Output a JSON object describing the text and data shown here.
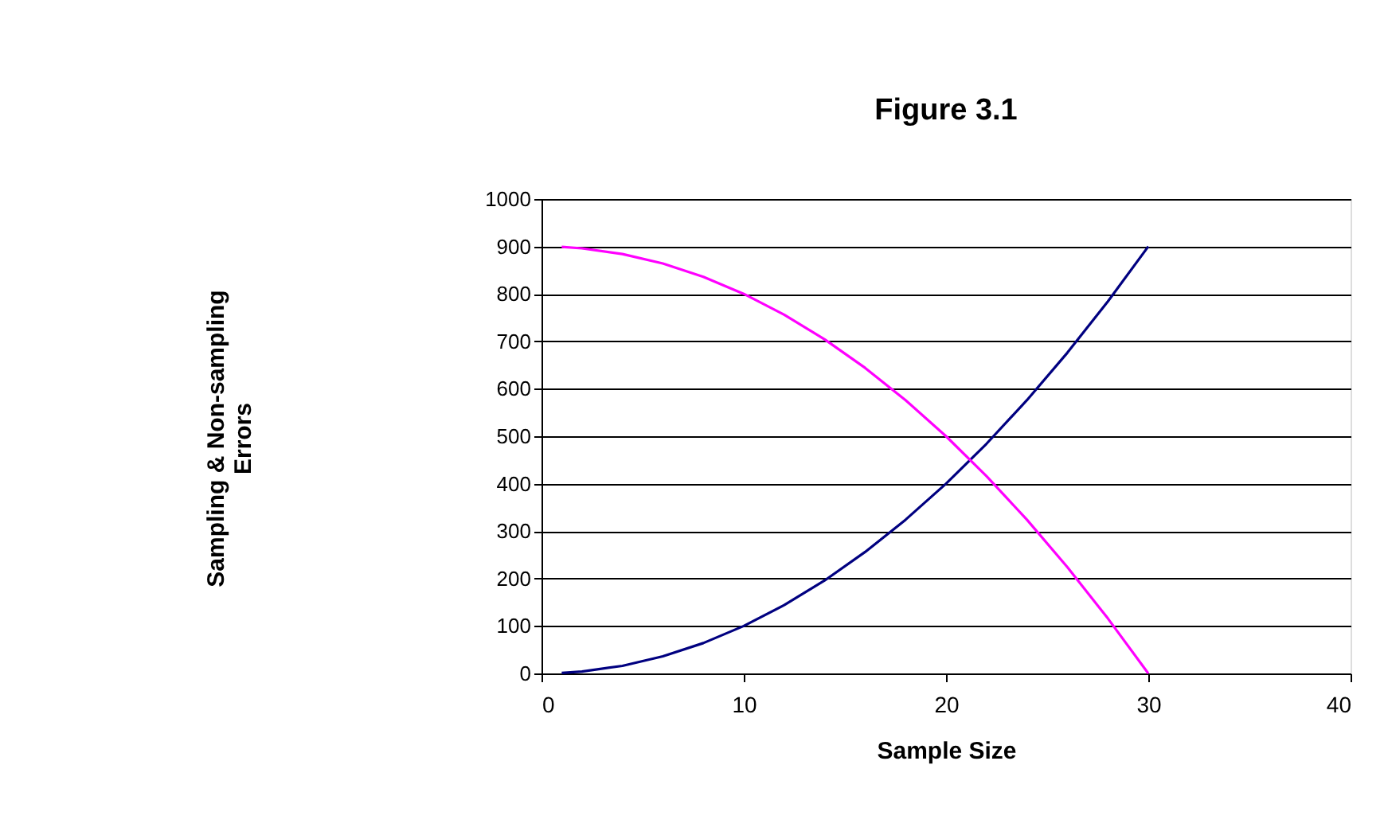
{
  "chart_data": {
    "type": "line",
    "title": "Figure 3.1",
    "xlabel": "Sample Size",
    "ylabel": [
      "Sampling & Non-sampling",
      "Errors"
    ],
    "series": [
      {
        "color": "#000080",
        "x": [
          1,
          2,
          4,
          6,
          8,
          10,
          12,
          14,
          16,
          18,
          20,
          22,
          24,
          26,
          28,
          30
        ],
        "values": [
          1,
          4,
          16,
          36,
          64,
          100,
          144,
          196,
          256,
          324,
          400,
          484,
          576,
          676,
          784,
          900
        ]
      },
      {
        "color": "#ff00ff",
        "x": [
          1,
          2,
          4,
          6,
          8,
          10,
          12,
          14,
          16,
          18,
          20,
          22,
          24,
          26,
          28,
          30
        ],
        "values": [
          899,
          896,
          884,
          864,
          836,
          800,
          756,
          704,
          644,
          576,
          500,
          416,
          324,
          224,
          116,
          0
        ]
      }
    ],
    "xlim": [
      0,
      40
    ],
    "xticks": [
      0,
      10,
      20,
      30,
      40
    ],
    "ylim": [
      0,
      1000
    ],
    "yticks": [
      0,
      100,
      200,
      300,
      400,
      500,
      600,
      700,
      800,
      900,
      1000
    ],
    "grid": "y",
    "legend": false,
    "marker": "none",
    "line_style": "solid"
  }
}
